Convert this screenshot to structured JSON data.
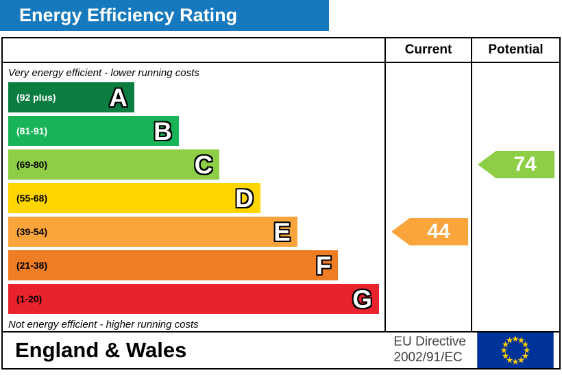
{
  "colors": {
    "header_bg": "#1679bd",
    "flag_bg": "#003399",
    "flag_star": "#ffcc00"
  },
  "header": {
    "title": "Energy Efficiency Rating"
  },
  "columns": {
    "current": "Current",
    "potential": "Potential"
  },
  "chart_data": {
    "type": "bar",
    "variant": "epc-energy-efficiency-rating",
    "title": "Energy Efficiency Rating",
    "top_note": "Very energy efficient - lower running costs",
    "bottom_note": "Not energy efficient - higher running costs",
    "bands": [
      {
        "letter": "A",
        "range": "(92 plus)",
        "color": "#0b7d41",
        "text_color": "#ffffff",
        "width_pct": 34
      },
      {
        "letter": "B",
        "range": "(81-91)",
        "color": "#19b459",
        "text_color": "#ffffff",
        "width_pct": 46
      },
      {
        "letter": "C",
        "range": "(69-80)",
        "color": "#8dce46",
        "text_color": "#000000",
        "width_pct": 57
      },
      {
        "letter": "D",
        "range": "(55-68)",
        "color": "#ffd500",
        "text_color": "#000000",
        "width_pct": 68
      },
      {
        "letter": "E",
        "range": "(39-54)",
        "color": "#f9a53c",
        "text_color": "#000000",
        "width_pct": 78
      },
      {
        "letter": "F",
        "range": "(21-38)",
        "color": "#ef7d23",
        "text_color": "#000000",
        "width_pct": 89
      },
      {
        "letter": "G",
        "range": "(1-20)",
        "color": "#e9232d",
        "text_color": "#000000",
        "width_pct": 100
      }
    ],
    "current": {
      "value": 44,
      "band": "E",
      "color": "#f9a53c"
    },
    "potential": {
      "value": 74,
      "band": "C",
      "color": "#8dce46"
    }
  },
  "footer": {
    "region": "England & Wales",
    "directive_line1": "EU Directive",
    "directive_line2": "2002/91/EC"
  }
}
